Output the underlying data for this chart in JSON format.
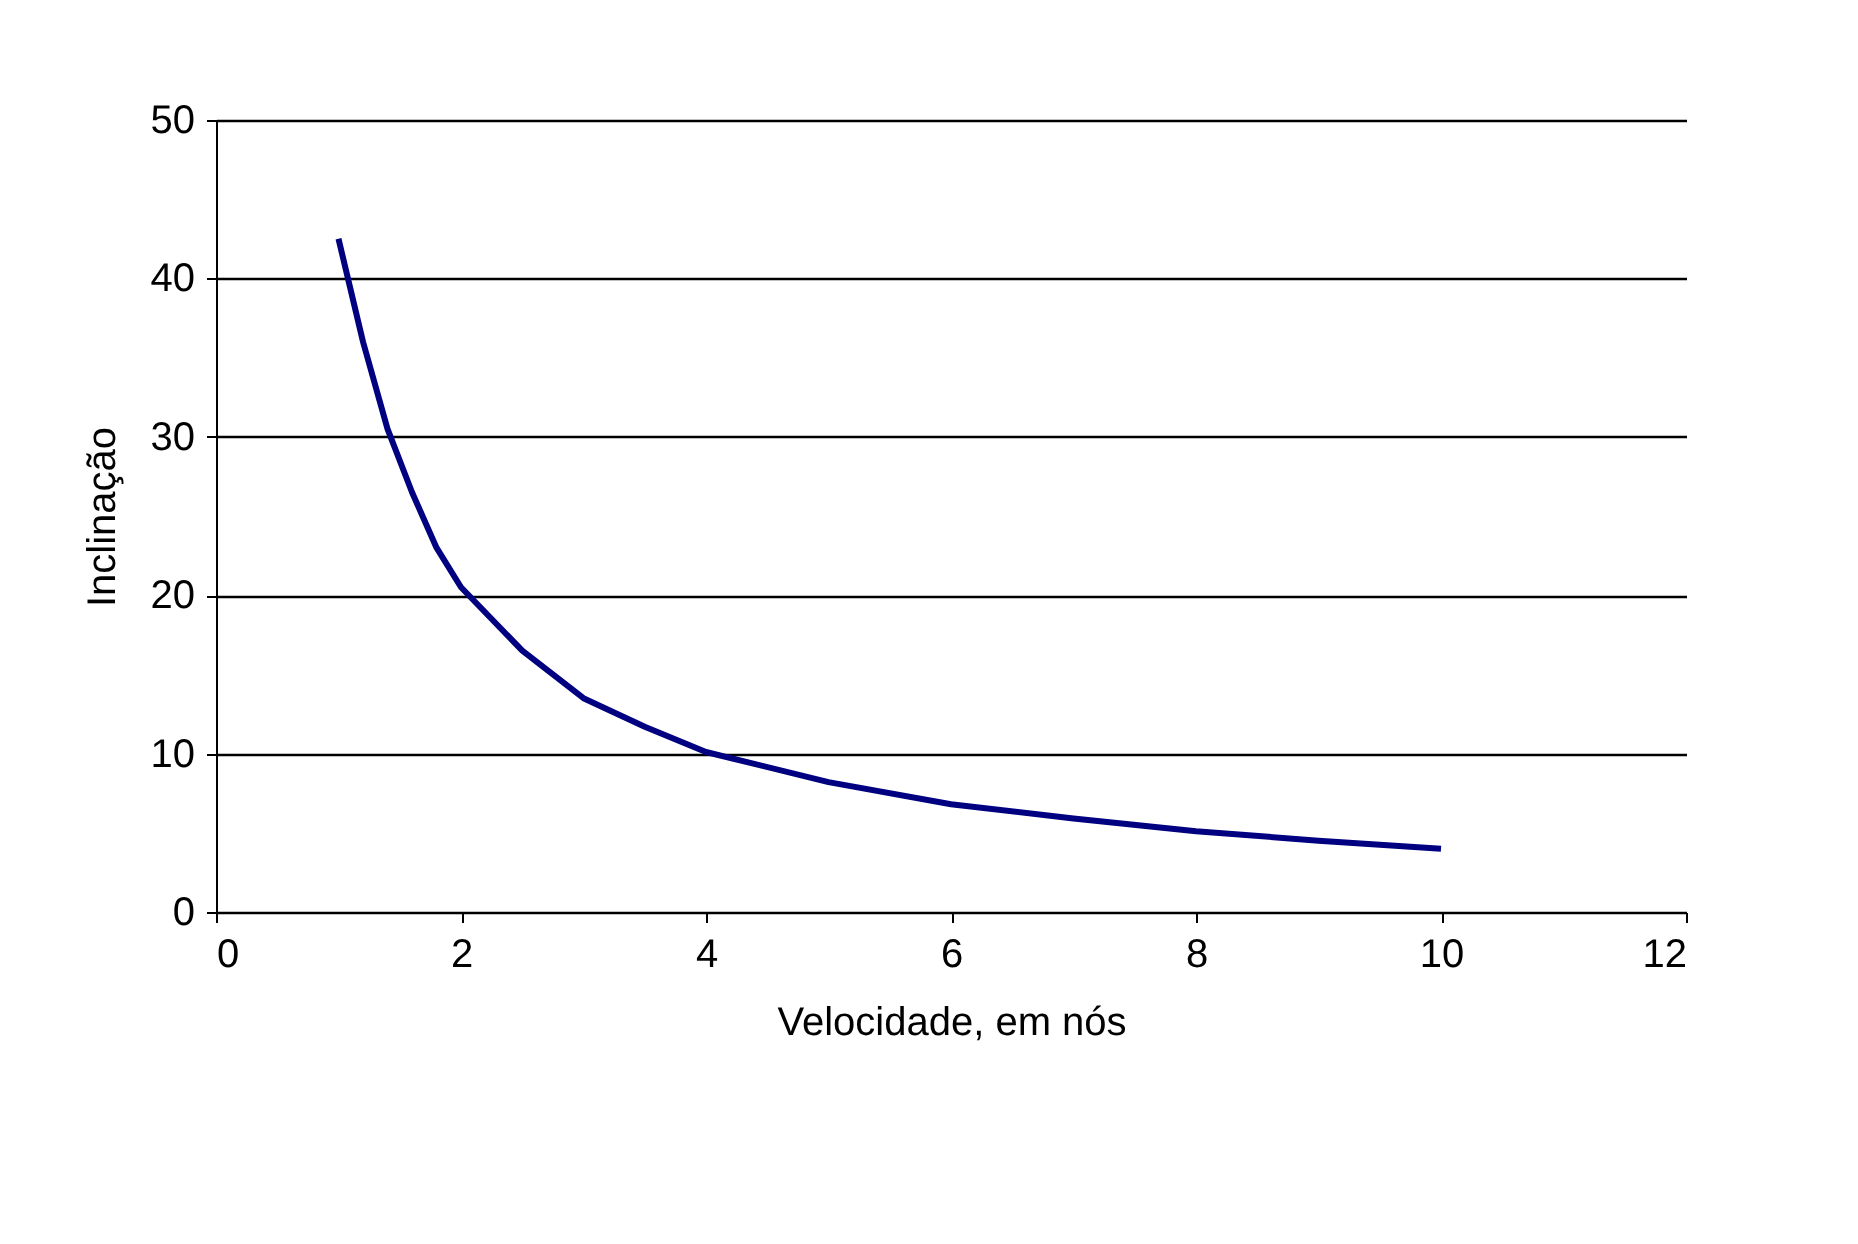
{
  "chart_data": {
    "type": "line",
    "xlabel": "Velocidade, em nós",
    "ylabel": "Inclinação",
    "x": [
      1,
      1.2,
      1.4,
      1.6,
      1.8,
      2,
      2.5,
      3,
      3.5,
      4,
      5,
      6,
      7,
      8,
      9,
      10
    ],
    "series": [
      {
        "color": "#000080",
        "values": [
          42.5,
          36,
          30.5,
          26.5,
          23,
          20.5,
          16.5,
          13.5,
          11.7,
          10.1,
          8.2,
          6.8,
          5.9,
          5.1,
          4.5,
          4.0
        ]
      }
    ],
    "xlim": [
      0,
      12
    ],
    "xticks": [
      0,
      2,
      4,
      6,
      8,
      10,
      12
    ],
    "ylim": [
      0,
      50
    ],
    "yticks": [
      0,
      10,
      20,
      30,
      40,
      50
    ],
    "grid": "y",
    "marker": "none",
    "line_style": "solid"
  }
}
